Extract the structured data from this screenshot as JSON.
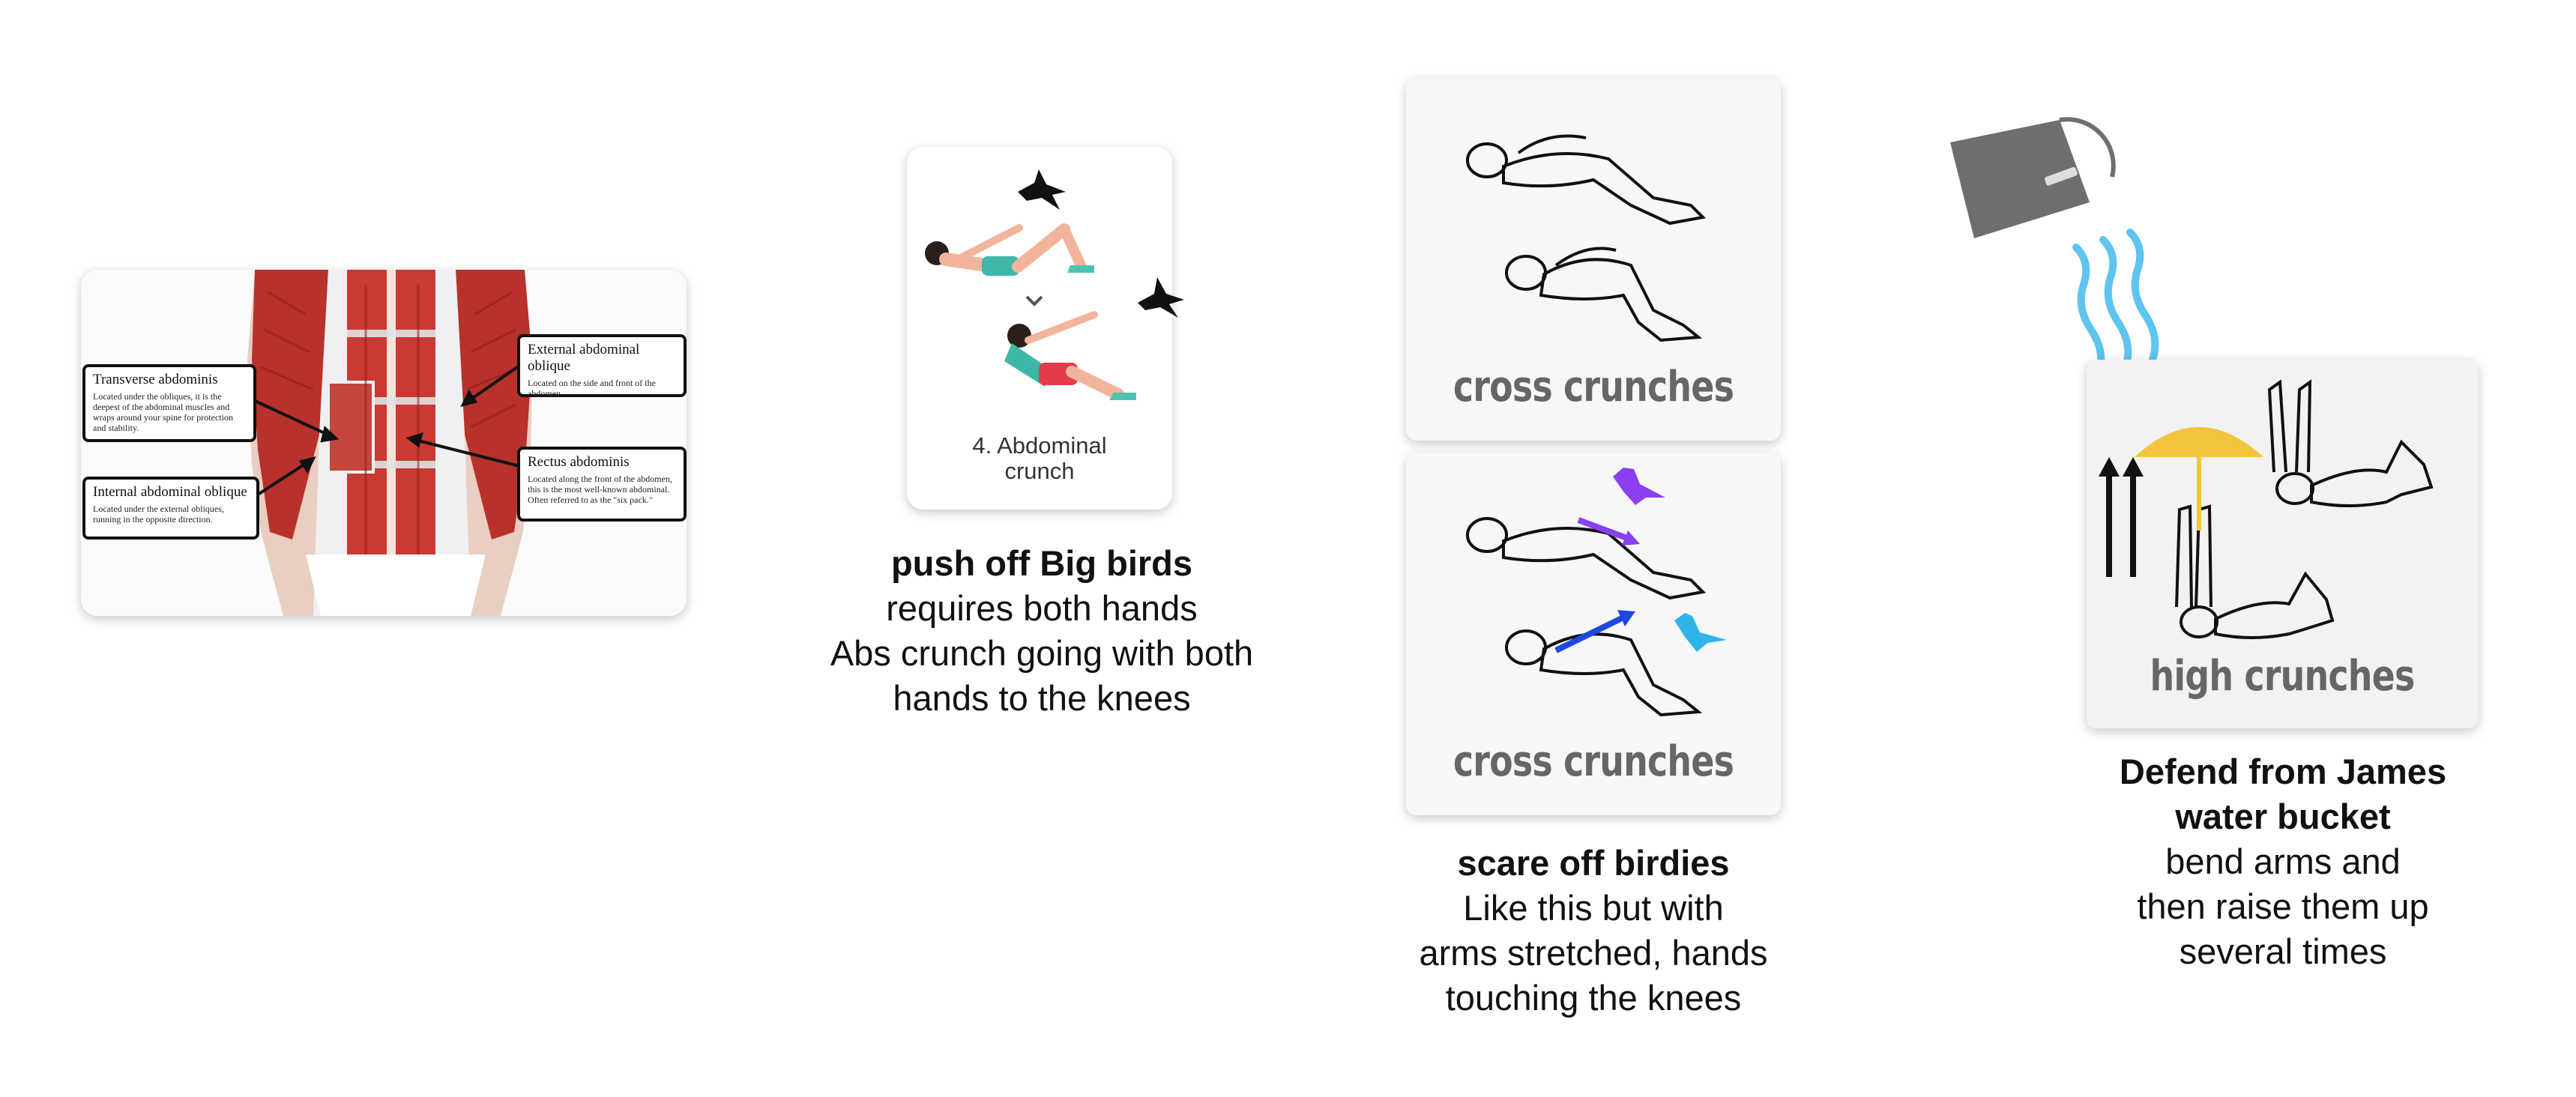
{
  "anatomy": {
    "labels": [
      {
        "title": "Transverse abdominis",
        "desc": "Located under the obliques, it is the deepest of the abdominal muscles and wraps around your spine for protection and stability."
      },
      {
        "title": "Internal abdominal oblique",
        "desc": "Located under the external obliques, running in the opposite direction."
      },
      {
        "title": "External abdominal oblique",
        "desc": "Located on the side and front of the abdomen."
      },
      {
        "title": "Rectus abdominis",
        "desc": "Located along the front of the abdomen, this is the most well-known abdominal. Often referred to as the \"six pack.\""
      }
    ]
  },
  "exercises": [
    {
      "card_label": "4. Abdominal crunch",
      "title": "push off Big birds",
      "lines": [
        "requires both hands",
        "Abs crunch going with both",
        "hands to the knees"
      ]
    },
    {
      "card_label_top": "cross crunches",
      "card_label_bottom": "cross crunches",
      "title": "scare off birdies",
      "lines": [
        "Like this but with",
        "arms stretched, hands",
        "touching the knees"
      ]
    },
    {
      "card_label": "high crunches",
      "title_lines": [
        "Defend from James",
        "water bucket"
      ],
      "lines": [
        "bend arms and",
        "then raise them up",
        "several times"
      ]
    }
  ],
  "colors": {
    "muscle": "#b8312b",
    "water": "#5ec4f0",
    "umbrella": "#f2c53d",
    "bucket": "#6e6e6e",
    "bird_purple": "#8a3ff0",
    "bird_blue": "#1c49e0",
    "bird_cyan": "#2fb4ea"
  }
}
